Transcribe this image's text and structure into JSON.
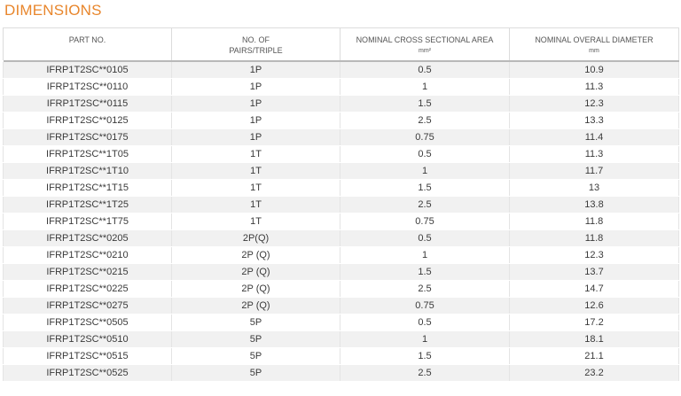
{
  "page": {
    "title": "DIMENSIONS",
    "accent_color": "#e8862c"
  },
  "table": {
    "headers": [
      {
        "line1": "PART NO.",
        "line2": ""
      },
      {
        "line1": "NO. OF",
        "line2": "PAIRS/TRIPLE"
      },
      {
        "line1": "NOMINAL CROSS SECTIONAL AREA",
        "line2": "mm²"
      },
      {
        "line1": "NOMINAL OVERALL DIAMETER",
        "line2": "mm"
      }
    ],
    "rows": [
      [
        "IFRP1T2SC**0105",
        "1P",
        "0.5",
        "10.9"
      ],
      [
        "IFRP1T2SC**0110",
        "1P",
        "1",
        "11.3"
      ],
      [
        "IFRP1T2SC**0115",
        "1P",
        "1.5",
        "12.3"
      ],
      [
        "IFRP1T2SC**0125",
        "1P",
        "2.5",
        "13.3"
      ],
      [
        "IFRP1T2SC**0175",
        "1P",
        "0.75",
        "11.4"
      ],
      [
        "IFRP1T2SC**1T05",
        "1T",
        "0.5",
        "11.3"
      ],
      [
        "IFRP1T2SC**1T10",
        "1T",
        "1",
        "11.7"
      ],
      [
        "IFRP1T2SC**1T15",
        "1T",
        "1.5",
        "13"
      ],
      [
        "IFRP1T2SC**1T25",
        "1T",
        "2.5",
        "13.8"
      ],
      [
        "IFRP1T2SC**1T75",
        "1T",
        "0.75",
        "11.8"
      ],
      [
        "IFRP1T2SC**0205",
        "2P(Q)",
        "0.5",
        "11.8"
      ],
      [
        "IFRP1T2SC**0210",
        "2P (Q)",
        "1",
        "12.3"
      ],
      [
        "IFRP1T2SC**0215",
        "2P (Q)",
        "1.5",
        "13.7"
      ],
      [
        "IFRP1T2SC**0225",
        "2P (Q)",
        "2.5",
        "14.7"
      ],
      [
        "IFRP1T2SC**0275",
        "2P (Q)",
        "0.75",
        "12.6"
      ],
      [
        "IFRP1T2SC**0505",
        "5P",
        "0.5",
        "17.2"
      ],
      [
        "IFRP1T2SC**0510",
        "5P",
        "1",
        "18.1"
      ],
      [
        "IFRP1T2SC**0515",
        "5P",
        "1.5",
        "21.1"
      ],
      [
        "IFRP1T2SC**0525",
        "5P",
        "2.5",
        "23.2"
      ]
    ]
  }
}
